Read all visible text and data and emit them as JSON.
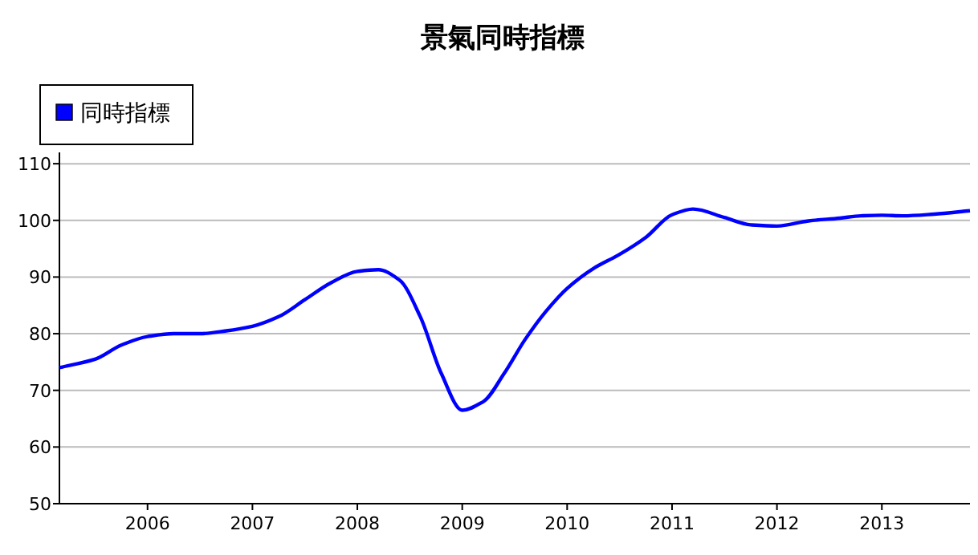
{
  "chart_data": {
    "type": "line",
    "title": "景氣同時指標",
    "x": [
      2005.16,
      2005.5,
      2005.75,
      2006,
      2006.25,
      2006.5,
      2006.75,
      2007,
      2007.25,
      2007.5,
      2007.75,
      2008,
      2008.2,
      2008.4,
      2008.6,
      2008.8,
      2009,
      2009.2,
      2009.4,
      2009.6,
      2009.8,
      2010,
      2010.25,
      2010.5,
      2010.75,
      2011,
      2011.2,
      2011.5,
      2011.75,
      2012,
      2012.3,
      2012.6,
      2012.8,
      2013,
      2013.2,
      2013.5,
      2013.84
    ],
    "series": [
      {
        "name": "同時指標",
        "color": "#0000ff",
        "values": [
          74,
          75.5,
          78,
          79.5,
          80,
          80,
          80.5,
          81.3,
          83,
          86,
          89,
          91,
          91.3,
          89.5,
          83,
          73,
          66.5,
          68,
          73,
          79,
          84,
          88,
          91.5,
          94,
          97,
          101,
          102,
          100.5,
          99.2,
          99,
          99.9,
          100.4,
          100.8,
          100.9,
          100.8,
          101.1,
          101.7
        ]
      }
    ],
    "xlim": [
      2005.16,
      2013.84
    ],
    "ylim": [
      50,
      112
    ],
    "xticks": [
      2006,
      2007,
      2008,
      2009,
      2010,
      2011,
      2012,
      2013
    ],
    "yticks": [
      50,
      60,
      70,
      80,
      90,
      100,
      110
    ],
    "grid": "y",
    "legend": "top left"
  }
}
